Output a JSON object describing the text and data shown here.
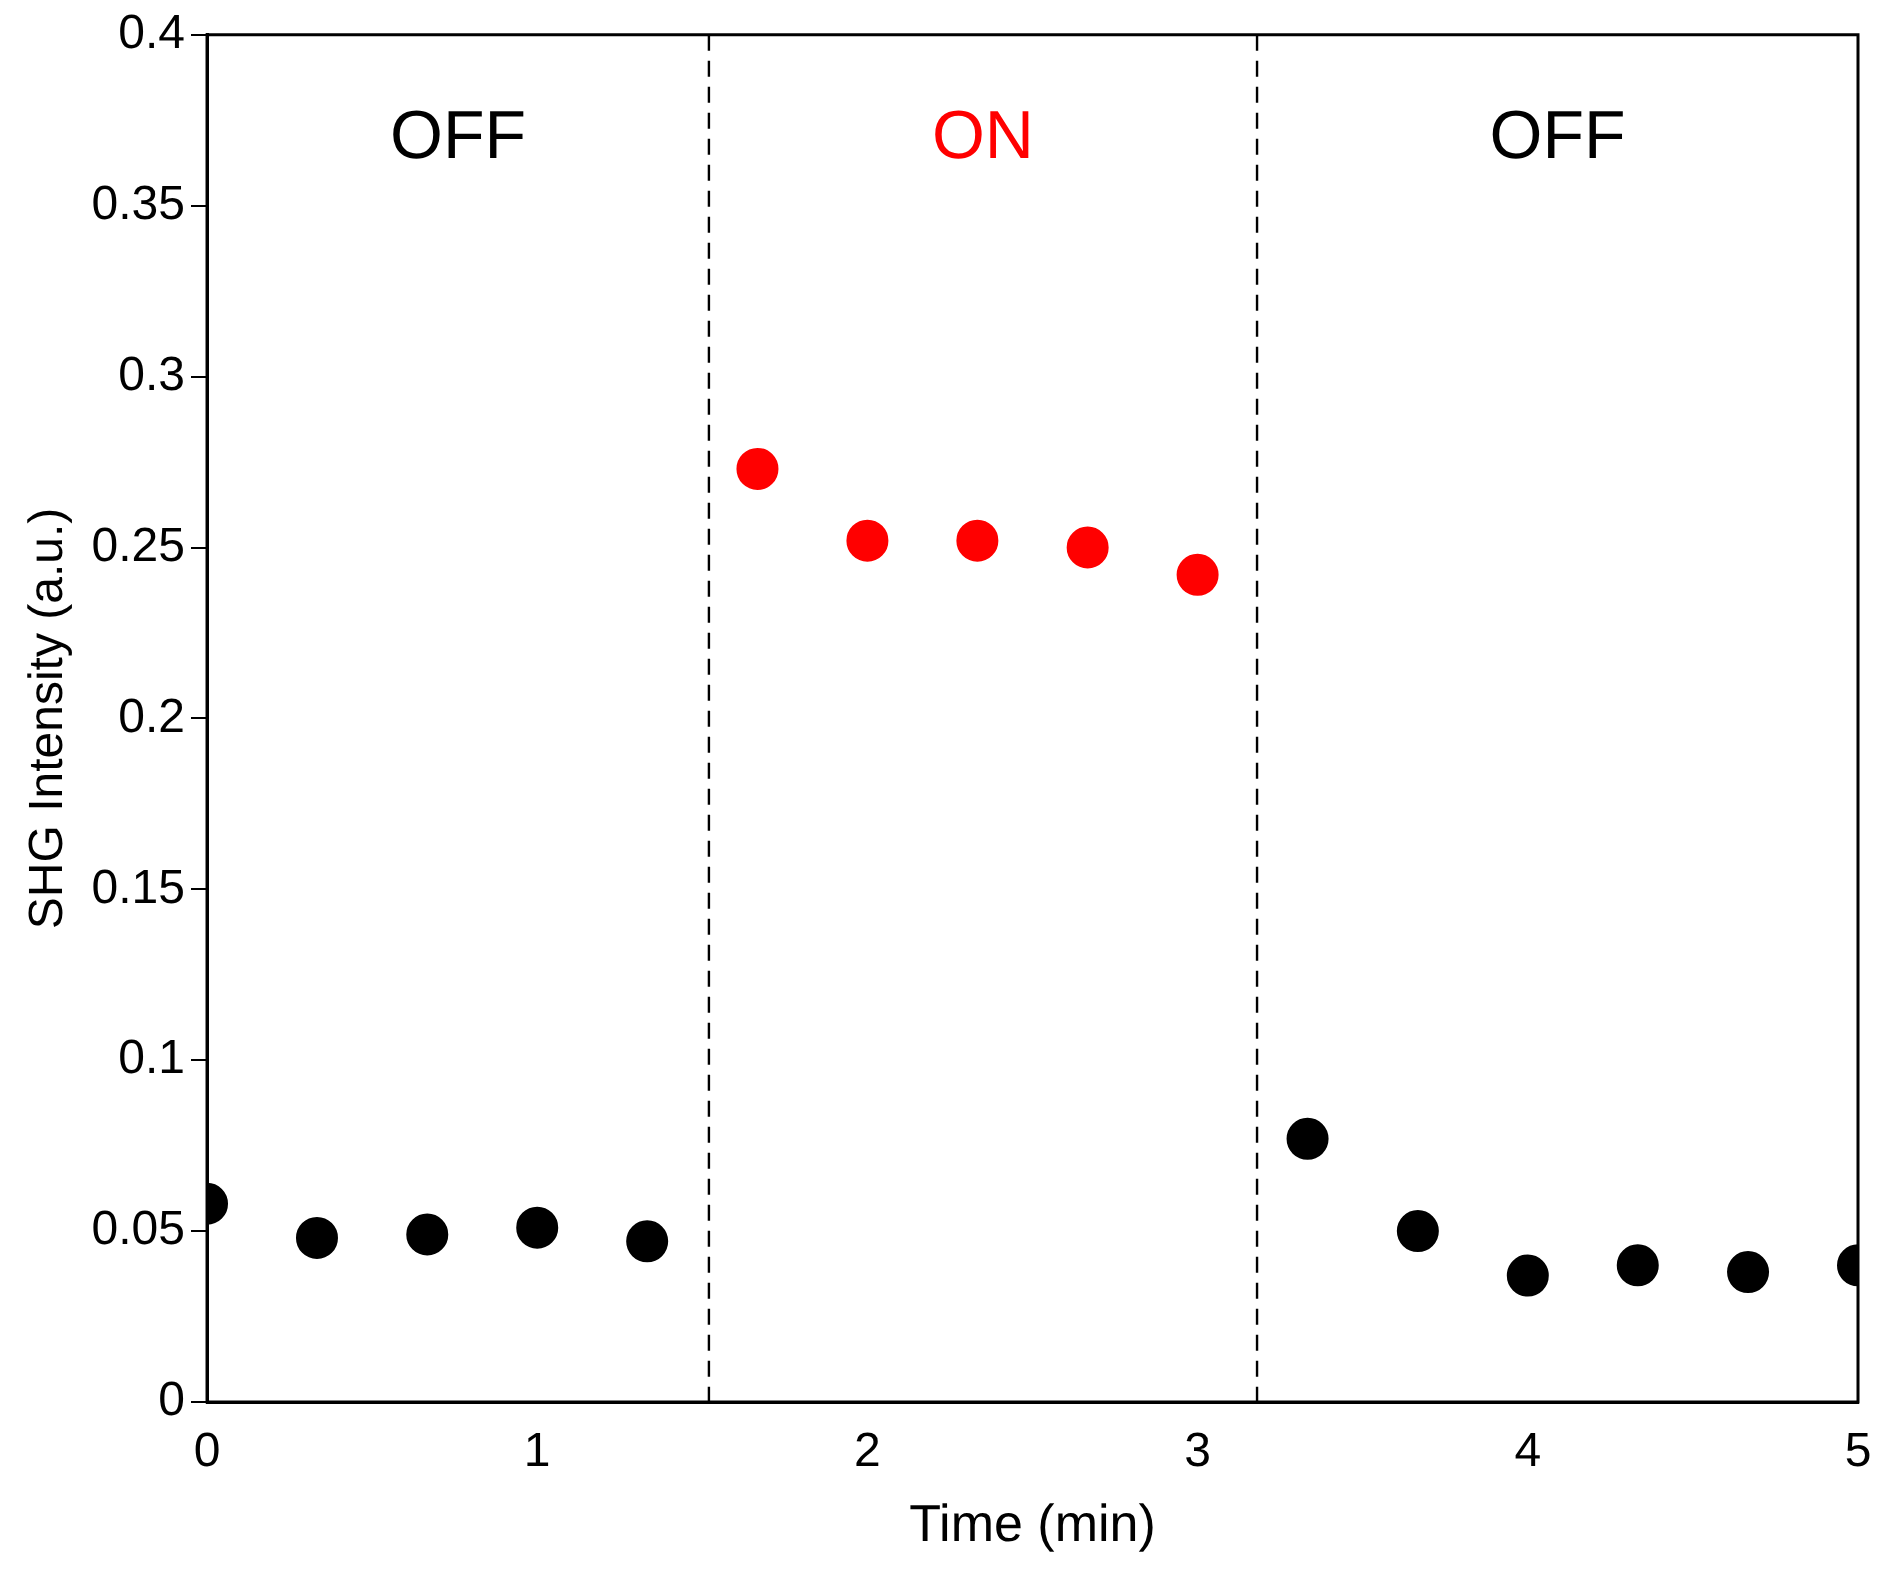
{
  "chart_data": {
    "type": "scatter",
    "xlabel": "Time (min)",
    "ylabel": "SHG Intensity (a.u.)",
    "xlim": [
      0,
      5
    ],
    "xticks": [
      0,
      1,
      2,
      3,
      4,
      5
    ],
    "ylim": [
      0,
      0.4
    ],
    "yticks": [
      0,
      0.05,
      0.1,
      0.15,
      0.2,
      0.25,
      0.3,
      0.35,
      0.4
    ],
    "grid": false,
    "legend": false,
    "marker": "circle",
    "series": [
      {
        "color": "#000000",
        "x": [
          0,
          0.333,
          0.667,
          1,
          1.333,
          3.333,
          3.667,
          4,
          4.333,
          4.667,
          5
        ],
        "values": [
          0.058,
          0.048,
          0.049,
          0.051,
          0.047,
          0.077,
          0.05,
          0.037,
          0.04,
          0.038,
          0.04
        ]
      },
      {
        "color": "#ff0000",
        "x": [
          1.667,
          2,
          2.333,
          2.667,
          3
        ],
        "values": [
          0.273,
          0.252,
          0.252,
          0.25,
          0.242
        ]
      }
    ],
    "ref_lines": [
      {
        "axis": "x",
        "value": 1.52,
        "line_style": "dashed",
        "color": "#000000"
      },
      {
        "axis": "x",
        "value": 3.18,
        "line_style": "dashed",
        "color": "#000000"
      }
    ],
    "annotations": [
      "OFF",
      "ON",
      "OFF"
    ]
  }
}
